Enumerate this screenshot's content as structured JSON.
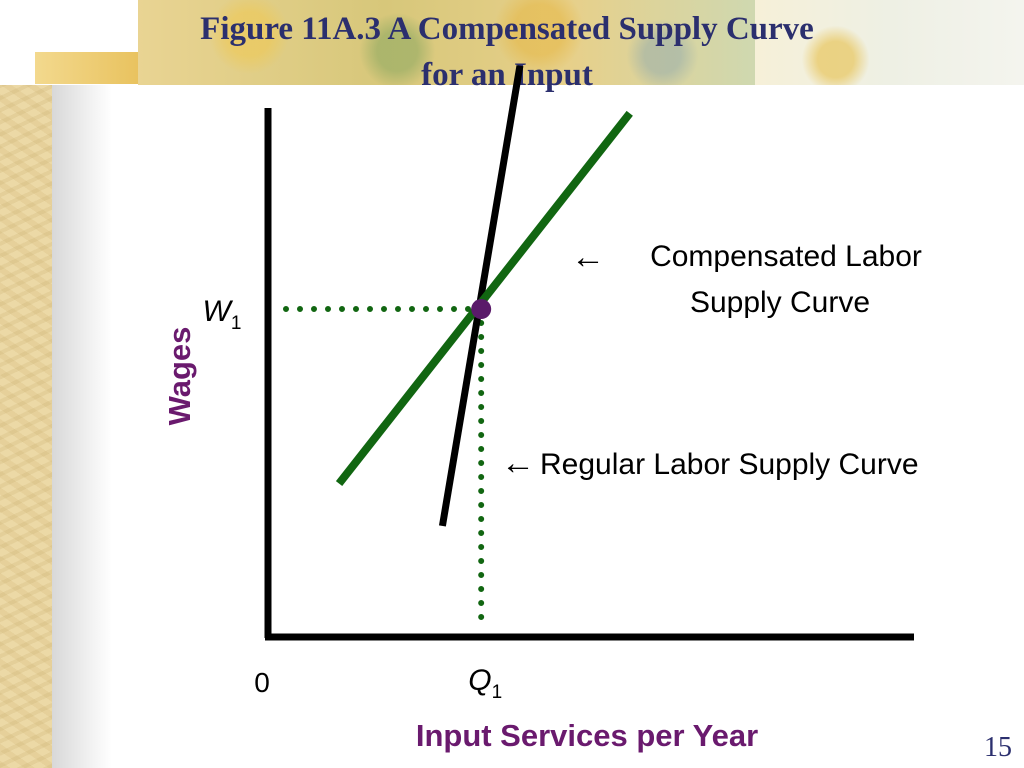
{
  "title": {
    "line1": "Figure 11A.3 A Compensated Supply Curve",
    "line2": "for an Input"
  },
  "page_number": "15",
  "colors": {
    "title": "#2b2f6e",
    "axis_label": "#6a1a6e",
    "compensated_curve": "#116611",
    "regular_curve": "#000000",
    "guide_dots": "#116611",
    "equilibrium_point": "#5a1a6a"
  },
  "chart_data": {
    "type": "line",
    "xlabel": "Input Services per Year",
    "ylabel": "Wages",
    "origin_label": "0",
    "xlim": [
      0,
      10
    ],
    "ylim": [
      0,
      10
    ],
    "grid": false,
    "series": [
      {
        "name": "Compensated Labor Supply Curve",
        "points": [
          [
            1.1,
            2.9
          ],
          [
            5.6,
            9.9
          ]
        ]
      },
      {
        "name": "Regular Labor Supply Curve",
        "points": [
          [
            2.7,
            2.1
          ],
          [
            3.9,
            10.8
          ]
        ]
      }
    ],
    "equilibrium": {
      "x": 3.3,
      "y": 6.2,
      "x_label": {
        "var": "Q",
        "sub": "1"
      },
      "y_label": {
        "var": "W",
        "sub": "1"
      }
    },
    "annotations": [
      {
        "arrow": "←",
        "lines": [
          "Compensated Labor",
          "Supply Curve"
        ]
      },
      {
        "arrow": "←",
        "lines": [
          "Regular Labor Supply Curve"
        ]
      }
    ]
  }
}
